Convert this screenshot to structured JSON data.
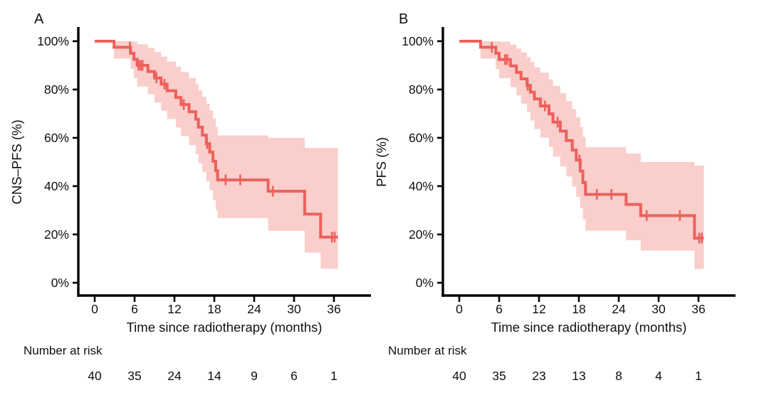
{
  "figure": {
    "background": "#ffffff",
    "text_color": "#111111",
    "axis_color": "#000000"
  },
  "chart_data": [
    {
      "type": "line",
      "subtype": "kaplan-meier-step",
      "panel_label": "A",
      "xlabel": "Time since radiotherapy (months)",
      "ylabel": "CNS–PFS (%)",
      "xlim": [
        0,
        41.5
      ],
      "ylim": [
        0,
        100
      ],
      "grid": false,
      "x_ticks": [
        0,
        6,
        12,
        18,
        24,
        30,
        36
      ],
      "y_tick_values": [
        100,
        80,
        60,
        40,
        20,
        0
      ],
      "y_tick_labels": [
        "100%",
        "80%",
        "60%",
        "40%",
        "20%",
        "0%"
      ],
      "line_color": "#ec615c",
      "band_color": "#f9cecb",
      "steps_format": "[t_months, survival_pct, band_lower_pct, band_upper_pct]",
      "steps": [
        [
          0,
          100,
          100,
          100
        ],
        [
          2.9,
          97.5,
          92.8,
          100
        ],
        [
          5.4,
          95.0,
          88.5,
          100
        ],
        [
          5.9,
          92.5,
          84.8,
          99.8
        ],
        [
          6.4,
          90.0,
          81.2,
          98.7
        ],
        [
          8.0,
          87.4,
          78.0,
          97.2
        ],
        [
          9.0,
          84.8,
          74.6,
          95.5
        ],
        [
          10.0,
          82.2,
          71.2,
          93.6
        ],
        [
          10.9,
          79.5,
          67.8,
          91.6
        ],
        [
          12.2,
          76.7,
          64.3,
          89.5
        ],
        [
          13.0,
          73.8,
          60.7,
          87.2
        ],
        [
          14.2,
          70.8,
          57.0,
          84.8
        ],
        [
          15.2,
          67.7,
          53.3,
          82.3
        ],
        [
          15.6,
          64.4,
          49.5,
          79.7
        ],
        [
          16.2,
          61.1,
          45.8,
          77.0
        ],
        [
          16.8,
          57.6,
          42.0,
          74.1
        ],
        [
          17.3,
          54.1,
          38.3,
          71.2
        ],
        [
          17.8,
          50.3,
          34.2,
          68.0
        ],
        [
          18.2,
          46.4,
          30.1,
          64.6
        ],
        [
          18.5,
          42.6,
          26.8,
          61.0
        ],
        [
          26.1,
          37.9,
          21.5,
          60.0
        ],
        [
          31.6,
          28.4,
          12.5,
          55.8
        ],
        [
          34.0,
          18.9,
          5.8,
          55.8
        ]
      ],
      "censor_times": [
        5.3,
        6.6,
        6.9,
        7.2,
        9.3,
        10.5,
        13.4,
        16.9,
        19.7,
        21.9,
        26.8,
        35.7,
        36.1
      ],
      "curve_end_month": 36.6,
      "number_at_risk_label": "Number at risk",
      "number_at_risk": [
        40,
        35,
        24,
        14,
        9,
        6,
        1
      ]
    },
    {
      "type": "line",
      "subtype": "kaplan-meier-step",
      "panel_label": "B",
      "xlabel": "Time since radiotherapy (months)",
      "ylabel": "PFS (%)",
      "xlim": [
        0,
        41.5
      ],
      "ylim": [
        0,
        100
      ],
      "grid": false,
      "x_ticks": [
        0,
        6,
        12,
        18,
        24,
        30,
        36
      ],
      "y_tick_values": [
        100,
        80,
        60,
        40,
        20,
        0
      ],
      "y_tick_labels": [
        "100%",
        "80%",
        "60%",
        "40%",
        "20%",
        "0%"
      ],
      "line_color": "#ec615c",
      "band_color": "#f9cecb",
      "steps_format": "[t_months, survival_pct, band_lower_pct, band_upper_pct]",
      "steps": [
        [
          0,
          100,
          100,
          100
        ],
        [
          3.2,
          97.5,
          92.8,
          100
        ],
        [
          5.5,
          95.0,
          88.5,
          100
        ],
        [
          6.0,
          92.4,
          84.7,
          99.8
        ],
        [
          7.7,
          89.8,
          81.0,
          98.6
        ],
        [
          8.6,
          87.1,
          77.6,
          97.0
        ],
        [
          9.3,
          84.4,
          74.2,
          95.3
        ],
        [
          10.2,
          81.7,
          70.7,
          93.4
        ],
        [
          10.7,
          78.9,
          67.2,
          91.4
        ],
        [
          11.3,
          76.1,
          63.7,
          89.2
        ],
        [
          12.2,
          73.2,
          60.1,
          87.0
        ],
        [
          13.5,
          69.9,
          56.2,
          84.2
        ],
        [
          14.1,
          66.5,
          52.3,
          81.5
        ],
        [
          15.2,
          62.8,
          48.2,
          78.5
        ],
        [
          16.1,
          58.9,
          44.0,
          75.2
        ],
        [
          17.0,
          54.9,
          39.8,
          71.9
        ],
        [
          17.6,
          50.8,
          35.6,
          68.4
        ],
        [
          18.2,
          46.2,
          30.9,
          64.5
        ],
        [
          18.6,
          41.5,
          26.3,
          60.4
        ],
        [
          19.0,
          36.6,
          21.6,
          56.1
        ],
        [
          25.1,
          32.4,
          17.6,
          53.5
        ],
        [
          27.3,
          27.8,
          13.3,
          50.0
        ],
        [
          35.4,
          18.5,
          5.7,
          48.5
        ]
      ],
      "censor_times": [
        4.9,
        6.9,
        7.2,
        10.3,
        12.9,
        14.8,
        18.1,
        20.7,
        22.9,
        28.2,
        33.2,
        36.1,
        36.5
      ],
      "curve_end_month": 36.8,
      "number_at_risk_label": "Number at risk",
      "number_at_risk": [
        40,
        35,
        23,
        13,
        8,
        4,
        1
      ]
    }
  ]
}
